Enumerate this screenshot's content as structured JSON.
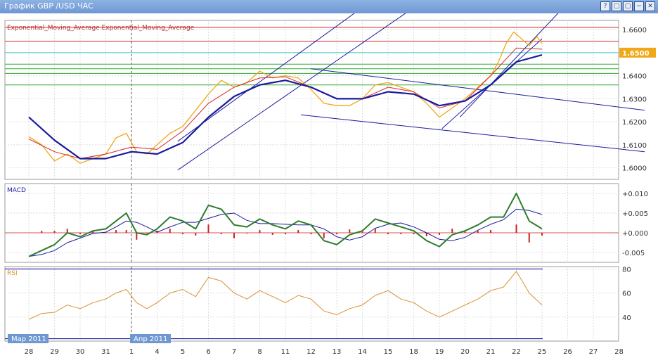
{
  "window": {
    "title": "График GBP /USD  ЧАС",
    "buttons": [
      "?",
      "□",
      "▢",
      "−",
      "✕"
    ]
  },
  "chart_data": {
    "type": "line",
    "symbol": "GBP/USD",
    "timeframe": "ЧАС",
    "x_axis": {
      "labels": [
        "28",
        "29",
        "30",
        "31",
        "1",
        "4",
        "5",
        "6",
        "7",
        "8",
        "11",
        "12",
        "13",
        "14",
        "15",
        "18",
        "19",
        "20",
        "21",
        "22",
        "25",
        "26",
        "27",
        "28"
      ],
      "month_labels": [
        {
          "label": "Мар 2011",
          "at_label": "28"
        },
        {
          "label": "Апр 2011",
          "at_label": "1"
        }
      ]
    },
    "price_panel": {
      "legend": "Exponential_Moving_Average Exponential_Moving_Average",
      "ylim": [
        1.595,
        1.664
      ],
      "yticks": [
        "1.6000",
        "1.6100",
        "1.6200",
        "1.6300",
        "1.6400",
        "1.6500",
        "1.6600"
      ],
      "current_price": "1.6500",
      "price_path": [
        [
          0,
          1.6135
        ],
        [
          0.5,
          1.61
        ],
        [
          1,
          1.603
        ],
        [
          1.5,
          1.606
        ],
        [
          2,
          1.602
        ],
        [
          2.5,
          1.604
        ],
        [
          3,
          1.606
        ],
        [
          3.4,
          1.613
        ],
        [
          3.8,
          1.615
        ],
        [
          4.2,
          1.607
        ],
        [
          4.6,
          1.606
        ],
        [
          5,
          1.61
        ],
        [
          5.5,
          1.615
        ],
        [
          6,
          1.618
        ],
        [
          6.5,
          1.625
        ],
        [
          7,
          1.632
        ],
        [
          7.5,
          1.638
        ],
        [
          8,
          1.635
        ],
        [
          8.5,
          1.637
        ],
        [
          9,
          1.642
        ],
        [
          9.5,
          1.639
        ],
        [
          10,
          1.64
        ],
        [
          10.5,
          1.639
        ],
        [
          11,
          1.634
        ],
        [
          11.5,
          1.628
        ],
        [
          12,
          1.627
        ],
        [
          12.5,
          1.627
        ],
        [
          13,
          1.63
        ],
        [
          13.5,
          1.636
        ],
        [
          14,
          1.637
        ],
        [
          14.5,
          1.635
        ],
        [
          15,
          1.633
        ],
        [
          15.5,
          1.628
        ],
        [
          16,
          1.622
        ],
        [
          16.5,
          1.626
        ],
        [
          17,
          1.63
        ],
        [
          17.5,
          1.635
        ],
        [
          18,
          1.64
        ],
        [
          18.3,
          1.646
        ],
        [
          18.6,
          1.654
        ],
        [
          18.9,
          1.659
        ],
        [
          19.2,
          1.656
        ],
        [
          19.5,
          1.653
        ],
        [
          19.8,
          1.657
        ],
        [
          20,
          1.654
        ]
      ],
      "ema_fast": [
        [
          0,
          1.6125
        ],
        [
          1,
          1.607
        ],
        [
          2,
          1.604
        ],
        [
          3,
          1.606
        ],
        [
          4,
          1.609
        ],
        [
          5,
          1.608
        ],
        [
          6,
          1.616
        ],
        [
          7,
          1.628
        ],
        [
          8,
          1.635
        ],
        [
          9,
          1.639
        ],
        [
          10,
          1.6395
        ],
        [
          11,
          1.635
        ],
        [
          12,
          1.63
        ],
        [
          13,
          1.63
        ],
        [
          14,
          1.635
        ],
        [
          15,
          1.633
        ],
        [
          16,
          1.626
        ],
        [
          17,
          1.629
        ],
        [
          18,
          1.64
        ],
        [
          19,
          1.652
        ],
        [
          20,
          1.6515
        ]
      ],
      "ema_slow": [
        [
          0,
          1.622
        ],
        [
          1,
          1.612
        ],
        [
          2,
          1.604
        ],
        [
          3,
          1.604
        ],
        [
          4,
          1.607
        ],
        [
          5,
          1.606
        ],
        [
          6,
          1.611
        ],
        [
          7,
          1.622
        ],
        [
          8,
          1.631
        ],
        [
          9,
          1.636
        ],
        [
          10,
          1.638
        ],
        [
          11,
          1.635
        ],
        [
          12,
          1.63
        ],
        [
          13,
          1.63
        ],
        [
          14,
          1.633
        ],
        [
          15,
          1.632
        ],
        [
          16,
          1.627
        ],
        [
          17,
          1.629
        ],
        [
          18,
          1.636
        ],
        [
          19,
          1.646
        ],
        [
          20,
          1.649
        ]
      ],
      "horizontal_levels": [
        {
          "y": 1.661,
          "color": "#d62828"
        },
        {
          "y": 1.655,
          "color": "#d62828"
        },
        {
          "y": 1.65,
          "color": "#3cc7c7"
        },
        {
          "y": 1.645,
          "color": "#33aa33"
        },
        {
          "y": 1.643,
          "color": "#33aa33"
        },
        {
          "y": 1.641,
          "color": "#33aa33"
        },
        {
          "y": 1.636,
          "color": "#33aa33"
        }
      ],
      "trend_lines": [
        {
          "from": [
            5.8,
            1.6115
          ],
          "to": [
            12.8,
            1.668
          ]
        },
        {
          "from": [
            5.8,
            1.599
          ],
          "to": [
            14.8,
            1.668
          ]
        },
        {
          "from": [
            11,
            1.643
          ],
          "to": [
            24,
            1.625
          ]
        },
        {
          "from": [
            10.6,
            1.623
          ],
          "to": [
            24,
            1.607
          ]
        },
        {
          "from": [
            16.1,
            1.617
          ],
          "to": [
            20,
            1.656
          ]
        },
        {
          "from": [
            16.8,
            1.622
          ],
          "to": [
            20.7,
            1.668
          ]
        }
      ],
      "colors": {
        "price": "#f0a818",
        "ema_fast": "#d62828",
        "ema_slow": "#1a1a9c",
        "trend": "#1a1a9c"
      }
    },
    "macd_panel": {
      "label": "MACD",
      "ylim": [
        -0.0075,
        0.0125
      ],
      "yticks": [
        "+0.010",
        "+0.005",
        "+0.000",
        "-0.005"
      ],
      "macd": [
        [
          0,
          -0.006
        ],
        [
          0.5,
          -0.0045
        ],
        [
          1,
          -0.003
        ],
        [
          1.5,
          0.0
        ],
        [
          2,
          -0.001
        ],
        [
          2.5,
          0.0005
        ],
        [
          3,
          0.001
        ],
        [
          3.4,
          0.003
        ],
        [
          3.8,
          0.005
        ],
        [
          4.2,
          0.0
        ],
        [
          4.6,
          -0.0005
        ],
        [
          5,
          0.001
        ],
        [
          5.5,
          0.004
        ],
        [
          6,
          0.003
        ],
        [
          6.5,
          0.001
        ],
        [
          7,
          0.007
        ],
        [
          7.5,
          0.006
        ],
        [
          8,
          0.002
        ],
        [
          8.5,
          0.0015
        ],
        [
          9,
          0.0035
        ],
        [
          9.5,
          0.002
        ],
        [
          10,
          0.001
        ],
        [
          10.5,
          0.003
        ],
        [
          11,
          0.002
        ],
        [
          11.5,
          -0.002
        ],
        [
          12,
          -0.003
        ],
        [
          12.5,
          -0.0005
        ],
        [
          13,
          0.0005
        ],
        [
          13.5,
          0.0035
        ],
        [
          14,
          0.0025
        ],
        [
          14.5,
          0.0015
        ],
        [
          15,
          0.0005
        ],
        [
          15.5,
          -0.002
        ],
        [
          16,
          -0.0035
        ],
        [
          16.5,
          -0.0005
        ],
        [
          17,
          0.0005
        ],
        [
          17.5,
          0.002
        ],
        [
          18,
          0.004
        ],
        [
          18.5,
          0.004
        ],
        [
          19,
          0.01
        ],
        [
          19.5,
          0.003
        ],
        [
          20,
          0.001
        ]
      ],
      "colors": {
        "macd": "#2d7d2d",
        "signal": "#1a1a9c",
        "hist": "#cc2222"
      }
    },
    "rsi_panel": {
      "label": "RSI",
      "ylim": [
        20,
        82
      ],
      "yticks": [
        "80",
        "60",
        "40"
      ],
      "levels": [
        80,
        22
      ],
      "rsi": [
        [
          0,
          38
        ],
        [
          0.5,
          43
        ],
        [
          1,
          44
        ],
        [
          1.5,
          50
        ],
        [
          2,
          47
        ],
        [
          2.5,
          52
        ],
        [
          3,
          55
        ],
        [
          3.4,
          60
        ],
        [
          3.8,
          63
        ],
        [
          4.2,
          52
        ],
        [
          4.6,
          47
        ],
        [
          5,
          52
        ],
        [
          5.5,
          60
        ],
        [
          6,
          63
        ],
        [
          6.5,
          57
        ],
        [
          7,
          73
        ],
        [
          7.5,
          70
        ],
        [
          8,
          60
        ],
        [
          8.5,
          55
        ],
        [
          9,
          62
        ],
        [
          9.5,
          57
        ],
        [
          10,
          52
        ],
        [
          10.5,
          58
        ],
        [
          11,
          55
        ],
        [
          11.5,
          45
        ],
        [
          12,
          42
        ],
        [
          12.5,
          47
        ],
        [
          13,
          50
        ],
        [
          13.5,
          58
        ],
        [
          14,
          62
        ],
        [
          14.5,
          55
        ],
        [
          15,
          52
        ],
        [
          15.5,
          45
        ],
        [
          16,
          40
        ],
        [
          16.5,
          45
        ],
        [
          17,
          50
        ],
        [
          17.5,
          55
        ],
        [
          18,
          62
        ],
        [
          18.5,
          65
        ],
        [
          19,
          78
        ],
        [
          19.5,
          60
        ],
        [
          20,
          50
        ]
      ],
      "colors": {
        "rsi": "#d89030",
        "levels": "#1a1a9c"
      }
    }
  }
}
